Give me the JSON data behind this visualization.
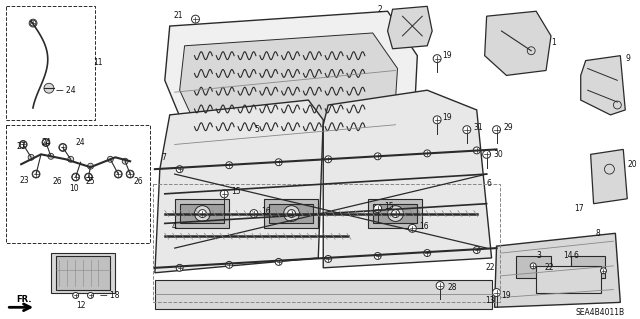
{
  "bg_color": "#ffffff",
  "diagram_code": "SEA4B4011B",
  "fig_width": 6.4,
  "fig_height": 3.19,
  "dpi": 100,
  "lc": "#2a2a2a",
  "lc_light": "#888888",
  "tc": "#111111",
  "fs": 6.5,
  "fs_small": 5.5,
  "gray_fill": "#d8d8d8",
  "gray_mid": "#c0c0c0",
  "gray_dark": "#a0a0a0",
  "white": "#ffffff"
}
